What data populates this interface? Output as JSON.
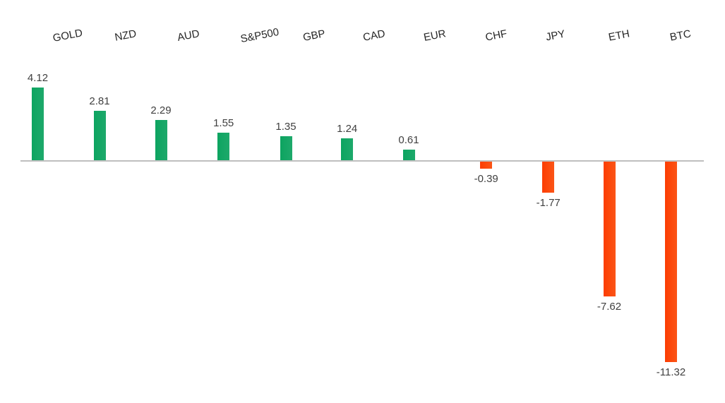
{
  "chart_data": {
    "type": "bar",
    "title": "",
    "xlabel": "",
    "ylabel": "",
    "categories": [
      "GOLD",
      "NZD",
      "AUD",
      "S&P500",
      "GBP",
      "CAD",
      "EUR",
      "CHF",
      "JPY",
      "ETH",
      "BTC"
    ],
    "values": [
      4.12,
      2.81,
      2.29,
      1.55,
      1.35,
      1.24,
      0.61,
      -0.39,
      -1.77,
      -7.62,
      -11.32
    ],
    "value_labels": [
      "4.12",
      "2.81",
      "2.29",
      "1.55",
      "1.35",
      "1.24",
      "0.61",
      "-0.39",
      "-1.77",
      "-7.62",
      "-11.32"
    ],
    "baseline": 0,
    "ylim": [
      -12,
      5
    ],
    "grid": false,
    "legend_position": "none",
    "colors": {
      "positive_bar_left": "#0ca460",
      "positive_bar_right": "#1ea96b",
      "negative_bar_left": "#fc3d02",
      "negative_bar_right": "#fb5517",
      "axis_line": "#bfbfbf",
      "value_label_text": "#404040",
      "category_label_text": "#262626",
      "background": "#ffffff"
    }
  }
}
